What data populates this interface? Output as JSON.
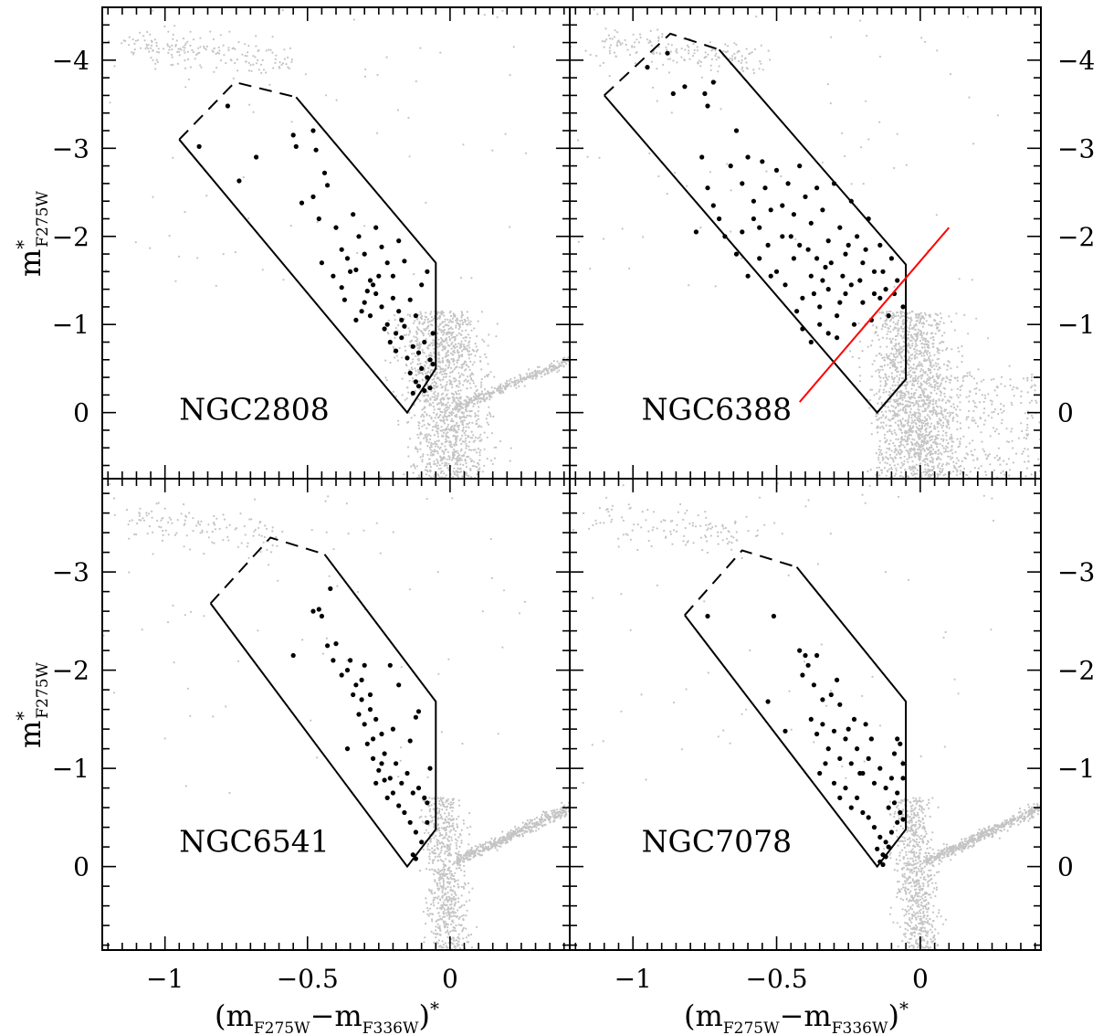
{
  "chart_data": [
    {
      "type": "scatter",
      "panel_label": "NGC2808",
      "xlabel": "(m_F275W − m_F336W)*",
      "ylabel": "m*_F275W",
      "xlim": [
        -1.22,
        0.42
      ],
      "ylim": [
        0.75,
        -4.6
      ],
      "yticks": [
        -4,
        -3,
        -2,
        -1,
        0
      ],
      "grid": false,
      "selection_box": [
        [
          -0.95,
          -3.1
        ],
        [
          -0.755,
          -3.75
        ],
        [
          -0.54,
          -3.58
        ],
        [
          -0.05,
          -1.7
        ],
        [
          -0.05,
          -0.5
        ],
        [
          -0.15,
          0.0
        ]
      ],
      "dashed_segment": [
        [
          -0.95,
          -3.1
        ],
        [
          -0.755,
          -3.75
        ],
        [
          -0.54,
          -3.58
        ]
      ],
      "points": [
        [
          -0.88,
          -3.02
        ],
        [
          -0.78,
          -3.48
        ],
        [
          -0.68,
          -2.9
        ],
        [
          -0.74,
          -2.63
        ],
        [
          -0.55,
          -3.15
        ],
        [
          -0.54,
          -3.02
        ],
        [
          -0.48,
          -3.2
        ],
        [
          -0.47,
          -2.98
        ],
        [
          -0.44,
          -2.72
        ],
        [
          -0.52,
          -2.38
        ],
        [
          -0.48,
          -2.45
        ],
        [
          -0.46,
          -2.2
        ],
        [
          -0.43,
          -2.58
        ],
        [
          -0.4,
          -2.1
        ],
        [
          -0.38,
          -1.85
        ],
        [
          -0.34,
          -2.25
        ],
        [
          -0.32,
          -2.0
        ],
        [
          -0.45,
          -1.7
        ],
        [
          -0.41,
          -1.55
        ],
        [
          -0.38,
          -1.42
        ],
        [
          -0.36,
          -1.75
        ],
        [
          -0.33,
          -1.62
        ],
        [
          -0.3,
          -1.8
        ],
        [
          -0.28,
          -1.5
        ],
        [
          -0.26,
          -2.1
        ],
        [
          -0.24,
          -1.88
        ],
        [
          -0.22,
          -1.7
        ],
        [
          -0.2,
          -1.55
        ],
        [
          -0.18,
          -1.95
        ],
        [
          -0.16,
          -1.72
        ],
        [
          -0.3,
          -1.25
        ],
        [
          -0.28,
          -1.1
        ],
        [
          -0.26,
          -1.35
        ],
        [
          -0.24,
          -1.2
        ],
        [
          -0.22,
          -1.0
        ],
        [
          -0.2,
          -1.3
        ],
        [
          -0.18,
          -1.15
        ],
        [
          -0.16,
          -0.98
        ],
        [
          -0.14,
          -1.28
        ],
        [
          -0.12,
          -1.1
        ],
        [
          -0.1,
          -1.45
        ],
        [
          -0.08,
          -1.6
        ],
        [
          -0.21,
          -0.8
        ],
        [
          -0.19,
          -0.7
        ],
        [
          -0.17,
          -0.85
        ],
        [
          -0.15,
          -0.62
        ],
        [
          -0.13,
          -0.75
        ],
        [
          -0.11,
          -0.68
        ],
        [
          -0.09,
          -0.8
        ],
        [
          -0.07,
          -0.6
        ],
        [
          -0.06,
          -0.9
        ],
        [
          -0.14,
          -0.45
        ],
        [
          -0.12,
          -0.35
        ],
        [
          -0.1,
          -0.5
        ],
        [
          -0.08,
          -0.4
        ],
        [
          -0.07,
          -0.28
        ],
        [
          -0.06,
          -0.55
        ],
        [
          -0.13,
          -0.22
        ],
        [
          -0.11,
          -0.3
        ],
        [
          -0.09,
          -0.25
        ],
        [
          -0.35,
          -1.6
        ],
        [
          -0.27,
          -1.45
        ],
        [
          -0.23,
          -0.95
        ],
        [
          -0.25,
          -1.55
        ],
        [
          -0.19,
          -0.9
        ],
        [
          -0.17,
          -1.05
        ],
        [
          -0.33,
          -1.05
        ],
        [
          -0.29,
          -1.38
        ],
        [
          -0.37,
          -1.28
        ],
        [
          -0.31,
          -1.15
        ]
      ],
      "text_pos": [
        -0.95,
        0.08
      ]
    },
    {
      "type": "scatter",
      "panel_label": "NGC6388",
      "xlabel": "(m_F275W − m_F336W)*",
      "ylabel": "",
      "xlim": [
        -1.22,
        0.42
      ],
      "ylim": [
        0.75,
        -4.6
      ],
      "yticks": [
        -4,
        -3,
        -2,
        -1,
        0
      ],
      "grid": false,
      "selection_box": [
        [
          -1.1,
          -3.6
        ],
        [
          -0.87,
          -4.3
        ],
        [
          -0.7,
          -4.12
        ],
        [
          -0.05,
          -1.68
        ],
        [
          -0.05,
          -0.38
        ],
        [
          -0.15,
          0.0
        ]
      ],
      "dashed_segment": [
        [
          -1.1,
          -3.6
        ],
        [
          -0.87,
          -4.3
        ],
        [
          -0.7,
          -4.12
        ]
      ],
      "cut_line": [
        [
          -0.42,
          -0.12
        ],
        [
          0.1,
          -2.1
        ]
      ],
      "points": [
        [
          -0.95,
          -3.92
        ],
        [
          -0.88,
          -4.08
        ],
        [
          -0.86,
          -3.62
        ],
        [
          -0.82,
          -3.7
        ],
        [
          -0.75,
          -3.62
        ],
        [
          -0.72,
          -3.75
        ],
        [
          -0.74,
          -3.48
        ],
        [
          -0.76,
          -2.9
        ],
        [
          -0.74,
          -2.55
        ],
        [
          -0.72,
          -2.35
        ],
        [
          -0.78,
          -2.05
        ],
        [
          -0.7,
          -2.2
        ],
        [
          -0.66,
          -2.8
        ],
        [
          -0.64,
          -3.2
        ],
        [
          -0.62,
          -2.6
        ],
        [
          -0.6,
          -2.9
        ],
        [
          -0.58,
          -2.4
        ],
        [
          -0.56,
          -2.1
        ],
        [
          -0.54,
          -2.55
        ],
        [
          -0.52,
          -2.3
        ],
        [
          -0.5,
          -2.75
        ],
        [
          -0.48,
          -2.0
        ],
        [
          -0.46,
          -2.6
        ],
        [
          -0.44,
          -2.25
        ],
        [
          -0.42,
          -1.9
        ],
        [
          -0.4,
          -2.45
        ],
        [
          -0.38,
          -2.15
        ],
        [
          -0.36,
          -1.75
        ],
        [
          -0.34,
          -2.3
        ],
        [
          -0.32,
          -1.95
        ],
        [
          -0.3,
          -2.6
        ],
        [
          -0.28,
          -2.1
        ],
        [
          -0.26,
          -1.8
        ],
        [
          -0.24,
          -2.4
        ],
        [
          -0.22,
          -2.0
        ],
        [
          -0.2,
          -1.7
        ],
        [
          -0.18,
          -2.2
        ],
        [
          -0.16,
          -1.6
        ],
        [
          -0.14,
          -1.9
        ],
        [
          -0.12,
          -1.4
        ],
        [
          -0.1,
          -1.75
        ],
        [
          -0.08,
          -1.5
        ],
        [
          -0.06,
          -1.2
        ],
        [
          -0.5,
          -1.6
        ],
        [
          -0.47,
          -1.45
        ],
        [
          -0.44,
          -1.75
        ],
        [
          -0.41,
          -1.3
        ],
        [
          -0.38,
          -1.55
        ],
        [
          -0.35,
          -1.2
        ],
        [
          -0.32,
          -1.4
        ],
        [
          -0.29,
          -1.1
        ],
        [
          -0.26,
          -1.35
        ],
        [
          -0.23,
          -1.0
        ],
        [
          -0.2,
          -1.25
        ],
        [
          -0.17,
          -1.05
        ],
        [
          -0.14,
          -1.3
        ],
        [
          -0.11,
          -1.1
        ],
        [
          -0.41,
          -0.95
        ],
        [
          -0.38,
          -0.8
        ],
        [
          -0.35,
          -1.0
        ],
        [
          -0.32,
          -0.9
        ],
        [
          -0.29,
          -0.85
        ],
        [
          -0.64,
          -1.8
        ],
        [
          -0.6,
          -1.55
        ],
        [
          -0.56,
          -1.75
        ],
        [
          -0.53,
          -1.9
        ],
        [
          -0.33,
          -1.65
        ],
        [
          -0.27,
          -1.55
        ],
        [
          -0.21,
          -1.5
        ],
        [
          -0.45,
          -2.0
        ],
        [
          -0.39,
          -1.85
        ],
        [
          -0.31,
          -1.7
        ],
        [
          -0.25,
          -1.9
        ],
        [
          -0.19,
          -1.85
        ],
        [
          -0.13,
          -1.6
        ],
        [
          -0.09,
          -1.35
        ],
        [
          -0.36,
          -2.55
        ],
        [
          -0.48,
          -2.35
        ],
        [
          -0.58,
          -2.2
        ],
        [
          -0.52,
          -1.55
        ],
        [
          -0.68,
          -2.0
        ],
        [
          -0.62,
          -2.05
        ],
        [
          -0.43,
          -1.15
        ],
        [
          -0.37,
          -1.35
        ],
        [
          -0.34,
          -1.5
        ],
        [
          -0.28,
          -1.25
        ],
        [
          -0.24,
          -1.45
        ],
        [
          -0.16,
          -1.35
        ],
        [
          -0.42,
          -2.8
        ],
        [
          -0.55,
          -2.85
        ]
      ],
      "text_pos": [
        -0.97,
        0.08
      ]
    },
    {
      "type": "scatter",
      "panel_label": "NGC6541",
      "xlabel": "",
      "ylabel": "m*_F275W",
      "xlim": [
        -1.22,
        0.42
      ],
      "ylim": [
        0.85,
        -3.95
      ],
      "yticks": [
        -3,
        -2,
        -1,
        0
      ],
      "grid": false,
      "selection_box": [
        [
          -0.84,
          -2.68
        ],
        [
          -0.63,
          -3.35
        ],
        [
          -0.44,
          -3.18
        ],
        [
          -0.05,
          -1.68
        ],
        [
          -0.05,
          -0.38
        ],
        [
          -0.15,
          0.0
        ]
      ],
      "dashed_segment": [
        [
          -0.84,
          -2.68
        ],
        [
          -0.63,
          -3.35
        ],
        [
          -0.44,
          -3.18
        ]
      ],
      "points": [
        [
          -0.55,
          -2.15
        ],
        [
          -0.48,
          -2.6
        ],
        [
          -0.46,
          -2.62
        ],
        [
          -0.45,
          -2.55
        ],
        [
          -0.42,
          -2.83
        ],
        [
          -0.43,
          -2.25
        ],
        [
          -0.41,
          -2.1
        ],
        [
          -0.4,
          -2.27
        ],
        [
          -0.38,
          -1.95
        ],
        [
          -0.36,
          -2.0
        ],
        [
          -0.35,
          -2.1
        ],
        [
          -0.33,
          -1.85
        ],
        [
          -0.31,
          -1.7
        ],
        [
          -0.3,
          -2.05
        ],
        [
          -0.34,
          -1.75
        ],
        [
          -0.32,
          -1.55
        ],
        [
          -0.3,
          -1.45
        ],
        [
          -0.28,
          -1.6
        ],
        [
          -0.26,
          -1.5
        ],
        [
          -0.24,
          -1.35
        ],
        [
          -0.36,
          -1.2
        ],
        [
          -0.29,
          -1.25
        ],
        [
          -0.27,
          -1.1
        ],
        [
          -0.25,
          -0.98
        ],
        [
          -0.23,
          -1.15
        ],
        [
          -0.21,
          -0.9
        ],
        [
          -0.19,
          -1.05
        ],
        [
          -0.17,
          -0.85
        ],
        [
          -0.15,
          -0.95
        ],
        [
          -0.13,
          -0.75
        ],
        [
          -0.11,
          -0.8
        ],
        [
          -0.09,
          -0.7
        ],
        [
          -0.26,
          -0.85
        ],
        [
          -0.22,
          -0.7
        ],
        [
          -0.2,
          -0.75
        ],
        [
          -0.18,
          -0.62
        ],
        [
          -0.16,
          -0.55
        ],
        [
          -0.14,
          -0.45
        ],
        [
          -0.12,
          -0.35
        ],
        [
          -0.1,
          -0.25
        ],
        [
          -0.13,
          -0.12
        ],
        [
          -0.12,
          -0.08
        ],
        [
          -0.08,
          -0.45
        ],
        [
          -0.21,
          -2.05
        ],
        [
          -0.18,
          -1.85
        ],
        [
          -0.11,
          -1.58
        ],
        [
          -0.12,
          -1.52
        ],
        [
          -0.07,
          -1.0
        ],
        [
          -0.08,
          -0.65
        ],
        [
          -0.14,
          -1.28
        ],
        [
          -0.2,
          -1.4
        ],
        [
          -0.31,
          -1.9
        ],
        [
          -0.27,
          -1.3
        ],
        [
          -0.23,
          -0.88
        ],
        [
          -0.28,
          -1.75
        ],
        [
          -0.24,
          -1.05
        ]
      ],
      "text_pos": [
        -0.95,
        -0.15
      ]
    },
    {
      "type": "scatter",
      "panel_label": "NGC7078",
      "xlabel": "",
      "ylabel": "",
      "xlim": [
        -1.22,
        0.42
      ],
      "ylim": [
        0.85,
        -3.95
      ],
      "yticks": [
        -3,
        -2,
        -1,
        0
      ],
      "grid": false,
      "selection_box": [
        [
          -0.82,
          -2.56
        ],
        [
          -0.62,
          -3.22
        ],
        [
          -0.43,
          -3.05
        ],
        [
          -0.05,
          -1.68
        ],
        [
          -0.05,
          -0.38
        ],
        [
          -0.15,
          0.0
        ]
      ],
      "dashed_segment": [
        [
          -0.82,
          -2.56
        ],
        [
          -0.62,
          -3.22
        ],
        [
          -0.43,
          -3.05
        ]
      ],
      "points": [
        [
          -0.74,
          -2.55
        ],
        [
          -0.51,
          -2.55
        ],
        [
          -0.53,
          -1.68
        ],
        [
          -0.47,
          -1.38
        ],
        [
          -0.42,
          -2.2
        ],
        [
          -0.4,
          -2.15
        ],
        [
          -0.41,
          -1.95
        ],
        [
          -0.39,
          -2.05
        ],
        [
          -0.37,
          -1.85
        ],
        [
          -0.36,
          -2.15
        ],
        [
          -0.34,
          -1.7
        ],
        [
          -0.31,
          -1.75
        ],
        [
          -0.29,
          -1.9
        ],
        [
          -0.28,
          -1.65
        ],
        [
          -0.38,
          -1.5
        ],
        [
          -0.36,
          -1.35
        ],
        [
          -0.34,
          -1.45
        ],
        [
          -0.32,
          -1.2
        ],
        [
          -0.3,
          -1.38
        ],
        [
          -0.28,
          -1.1
        ],
        [
          -0.26,
          -1.3
        ],
        [
          -0.24,
          -1.05
        ],
        [
          -0.22,
          -1.2
        ],
        [
          -0.2,
          -0.95
        ],
        [
          -0.18,
          -1.1
        ],
        [
          -0.16,
          -0.85
        ],
        [
          -0.14,
          -1.0
        ],
        [
          -0.12,
          -0.8
        ],
        [
          -0.1,
          -0.9
        ],
        [
          -0.08,
          -0.75
        ],
        [
          -0.06,
          -0.9
        ],
        [
          -0.3,
          -0.85
        ],
        [
          -0.28,
          -0.7
        ],
        [
          -0.26,
          -0.8
        ],
        [
          -0.24,
          -0.6
        ],
        [
          -0.22,
          -0.7
        ],
        [
          -0.2,
          -0.55
        ],
        [
          -0.18,
          -0.5
        ],
        [
          -0.16,
          -0.4
        ],
        [
          -0.14,
          -0.3
        ],
        [
          -0.12,
          -0.25
        ],
        [
          -0.1,
          -0.35
        ],
        [
          -0.08,
          -0.45
        ],
        [
          -0.07,
          -0.55
        ],
        [
          -0.06,
          -0.48
        ],
        [
          -0.15,
          -0.18
        ],
        [
          -0.13,
          -0.12
        ],
        [
          -0.11,
          -0.2
        ],
        [
          -0.14,
          -0.05
        ],
        [
          -0.13,
          -0.02
        ],
        [
          -0.12,
          -0.1
        ],
        [
          -0.08,
          -1.3
        ],
        [
          -0.07,
          -1.25
        ],
        [
          -0.06,
          -1.05
        ],
        [
          -0.09,
          -1.15
        ],
        [
          -0.19,
          -1.45
        ],
        [
          -0.17,
          -1.3
        ],
        [
          -0.23,
          -1.5
        ],
        [
          -0.25,
          -1.4
        ],
        [
          -0.33,
          -1.05
        ],
        [
          -0.35,
          -0.95
        ],
        [
          -0.21,
          -0.95
        ],
        [
          -0.11,
          -0.6
        ],
        [
          -0.09,
          -0.65
        ]
      ],
      "text_pos": [
        -0.97,
        -0.15
      ]
    }
  ],
  "x_tick_labels": [
    "−1",
    "−0.5",
    "0"
  ],
  "x_tick_values": [
    -1,
    -0.5,
    0
  ],
  "colors": {
    "background_stars": "#c4c4c4",
    "selected_stars": "#000000",
    "cut_line": "#ff0000",
    "frame": "#000000"
  }
}
